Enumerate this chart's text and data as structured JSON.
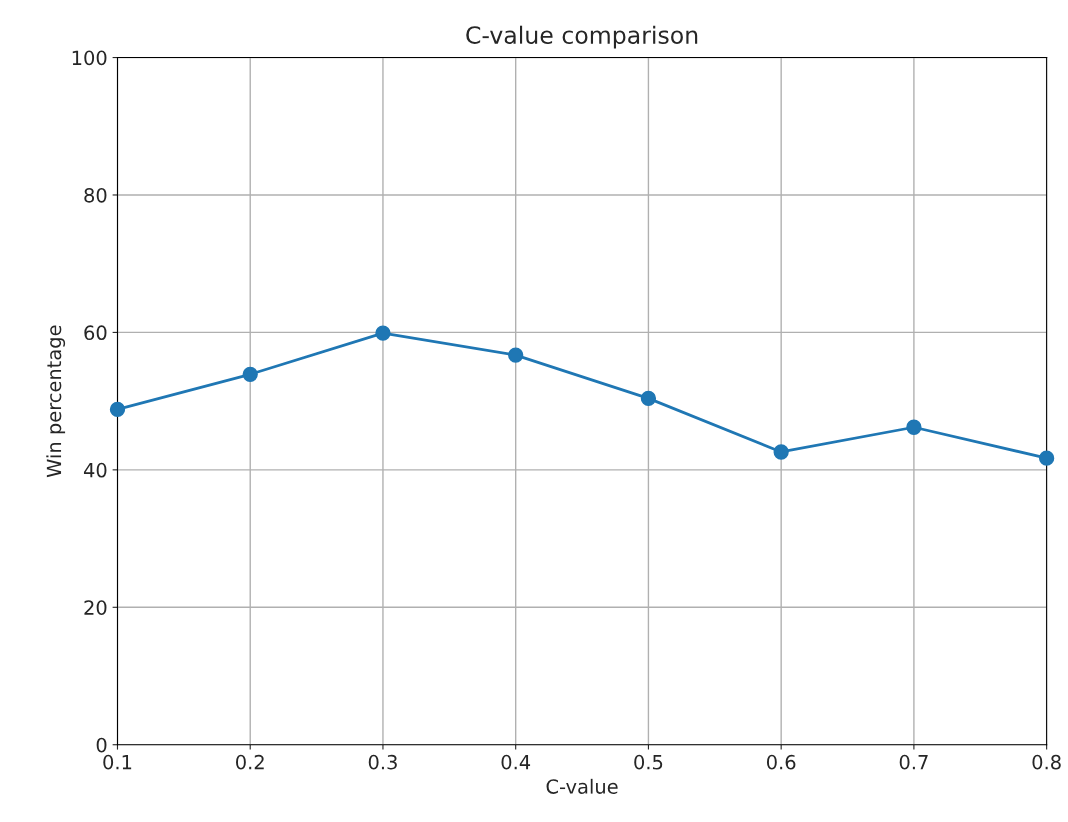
{
  "chart_data": {
    "type": "line",
    "title": "C-value comparison",
    "xlabel": "C-value",
    "ylabel": "Win percentage",
    "x": [
      0.1,
      0.2,
      0.3,
      0.4,
      0.5,
      0.6,
      0.7,
      0.8
    ],
    "series": [
      {
        "color": "#1f77b4",
        "values": [
          48.8,
          53.9,
          59.9,
          56.7,
          50.4,
          42.6,
          46.2,
          41.7
        ]
      }
    ],
    "xlim": [
      0.1,
      0.8
    ],
    "xticks": [
      0.1,
      0.2,
      0.3,
      0.4,
      0.5,
      0.6,
      0.7,
      0.8
    ],
    "ylim": [
      0,
      100
    ],
    "yticks": [
      0,
      20,
      40,
      60,
      80,
      100
    ],
    "grid": true,
    "marker": "circle",
    "line_style": "solid"
  }
}
